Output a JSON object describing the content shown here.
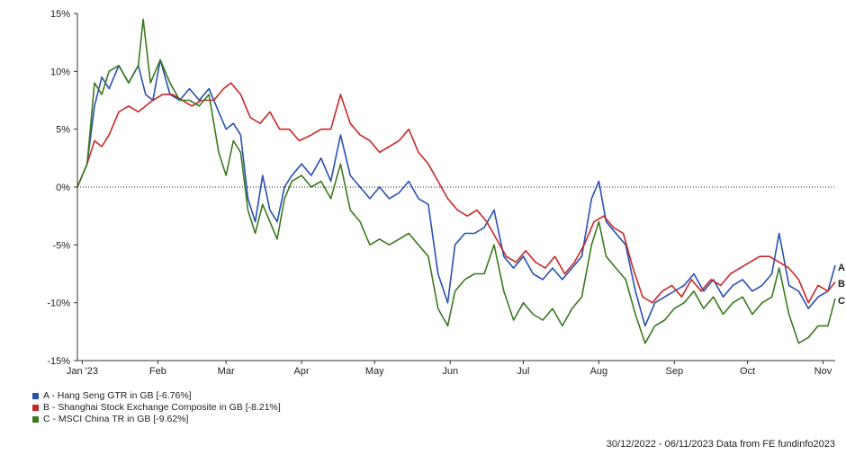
{
  "chart_data": {
    "type": "line",
    "title": "",
    "xlabel": "",
    "ylabel": "",
    "ylim": [
      -15,
      15
    ],
    "y_ticks": [
      15,
      10,
      5,
      0,
      -5,
      -10,
      -15
    ],
    "y_tick_labels": [
      "15%",
      "10%",
      "5%",
      "0%",
      "-5%",
      "-10%",
      "-15%"
    ],
    "x_range": [
      "2022-12-30",
      "2023-11-06"
    ],
    "x_ticks": [
      {
        "date": "2023-01-01",
        "label": "Jan '23"
      },
      {
        "date": "2023-02-01",
        "label": "Feb"
      },
      {
        "date": "2023-03-01",
        "label": "Mar"
      },
      {
        "date": "2023-04-01",
        "label": "Apr"
      },
      {
        "date": "2023-05-01",
        "label": "May"
      },
      {
        "date": "2023-06-01",
        "label": "Jun"
      },
      {
        "date": "2023-07-01",
        "label": "Jul"
      },
      {
        "date": "2023-08-01",
        "label": "Aug"
      },
      {
        "date": "2023-09-01",
        "label": "Sep"
      },
      {
        "date": "2023-10-01",
        "label": "Oct"
      },
      {
        "date": "2023-11-01",
        "label": "Nov"
      }
    ],
    "zero_line": "dotted",
    "series": [
      {
        "name": "A - Hang Seng GTR in GB [-6.76%]",
        "end_label": "A",
        "color": "#2850b4",
        "points": [
          [
            "2022-12-30",
            0
          ],
          [
            "2023-01-03",
            2
          ],
          [
            "2023-01-06",
            7
          ],
          [
            "2023-01-09",
            9.5
          ],
          [
            "2023-01-12",
            8.5
          ],
          [
            "2023-01-16",
            10.5
          ],
          [
            "2023-01-20",
            9
          ],
          [
            "2023-01-24",
            10.5
          ],
          [
            "2023-01-27",
            8
          ],
          [
            "2023-01-30",
            7.5
          ],
          [
            "2023-02-02",
            11
          ],
          [
            "2023-02-06",
            8
          ],
          [
            "2023-02-10",
            7.5
          ],
          [
            "2023-02-14",
            8.5
          ],
          [
            "2023-02-18",
            7.5
          ],
          [
            "2023-02-22",
            8.5
          ],
          [
            "2023-02-26",
            6.5
          ],
          [
            "2023-03-01",
            5
          ],
          [
            "2023-03-04",
            5.5
          ],
          [
            "2023-03-07",
            4.5
          ],
          [
            "2023-03-10",
            -1
          ],
          [
            "2023-03-13",
            -3
          ],
          [
            "2023-03-16",
            1
          ],
          [
            "2023-03-19",
            -2
          ],
          [
            "2023-03-22",
            -3
          ],
          [
            "2023-03-25",
            0
          ],
          [
            "2023-03-28",
            1
          ],
          [
            "2023-04-01",
            2
          ],
          [
            "2023-04-05",
            1
          ],
          [
            "2023-04-09",
            2.5
          ],
          [
            "2023-04-13",
            0.5
          ],
          [
            "2023-04-17",
            4.5
          ],
          [
            "2023-04-21",
            1
          ],
          [
            "2023-04-25",
            0
          ],
          [
            "2023-04-29",
            -1
          ],
          [
            "2023-05-03",
            0
          ],
          [
            "2023-05-07",
            -1
          ],
          [
            "2023-05-11",
            -0.5
          ],
          [
            "2023-05-15",
            0.5
          ],
          [
            "2023-05-19",
            -1
          ],
          [
            "2023-05-23",
            -1.5
          ],
          [
            "2023-05-27",
            -7.5
          ],
          [
            "2023-05-31",
            -10
          ],
          [
            "2023-06-03",
            -5
          ],
          [
            "2023-06-07",
            -4
          ],
          [
            "2023-06-11",
            -4
          ],
          [
            "2023-06-15",
            -3.5
          ],
          [
            "2023-06-19",
            -2
          ],
          [
            "2023-06-23",
            -6
          ],
          [
            "2023-06-27",
            -7
          ],
          [
            "2023-07-01",
            -6
          ],
          [
            "2023-07-05",
            -7.5
          ],
          [
            "2023-07-09",
            -8
          ],
          [
            "2023-07-13",
            -7
          ],
          [
            "2023-07-17",
            -8
          ],
          [
            "2023-07-21",
            -7
          ],
          [
            "2023-07-25",
            -6
          ],
          [
            "2023-07-29",
            -1
          ],
          [
            "2023-08-01",
            0.5
          ],
          [
            "2023-08-04",
            -3
          ],
          [
            "2023-08-08",
            -4
          ],
          [
            "2023-08-12",
            -5
          ],
          [
            "2023-08-16",
            -9
          ],
          [
            "2023-08-20",
            -12
          ],
          [
            "2023-08-24",
            -10
          ],
          [
            "2023-08-28",
            -9.5
          ],
          [
            "2023-09-01",
            -9
          ],
          [
            "2023-09-05",
            -8.5
          ],
          [
            "2023-09-09",
            -7.5
          ],
          [
            "2023-09-13",
            -9
          ],
          [
            "2023-09-17",
            -8
          ],
          [
            "2023-09-21",
            -9.5
          ],
          [
            "2023-09-25",
            -8.5
          ],
          [
            "2023-09-29",
            -8
          ],
          [
            "2023-10-03",
            -9
          ],
          [
            "2023-10-07",
            -8.5
          ],
          [
            "2023-10-11",
            -7.5
          ],
          [
            "2023-10-14",
            -4
          ],
          [
            "2023-10-18",
            -8.5
          ],
          [
            "2023-10-22",
            -9
          ],
          [
            "2023-10-26",
            -10.5
          ],
          [
            "2023-10-30",
            -9.5
          ],
          [
            "2023-11-03",
            -9
          ],
          [
            "2023-11-06",
            -6.76
          ]
        ]
      },
      {
        "name": "B - Shanghai Stock Exchange Composite in GB [-8.21%]",
        "end_label": "B",
        "color": "#c82828",
        "points": [
          [
            "2022-12-30",
            0
          ],
          [
            "2023-01-03",
            2
          ],
          [
            "2023-01-06",
            4
          ],
          [
            "2023-01-09",
            3.5
          ],
          [
            "2023-01-12",
            4.5
          ],
          [
            "2023-01-16",
            6.5
          ],
          [
            "2023-01-20",
            7
          ],
          [
            "2023-01-24",
            6.5
          ],
          [
            "2023-01-27",
            7
          ],
          [
            "2023-01-30",
            7.5
          ],
          [
            "2023-02-03",
            8
          ],
          [
            "2023-02-07",
            8
          ],
          [
            "2023-02-11",
            7.5
          ],
          [
            "2023-02-15",
            7
          ],
          [
            "2023-02-19",
            7.5
          ],
          [
            "2023-02-24",
            7.5
          ],
          [
            "2023-02-28",
            8.5
          ],
          [
            "2023-03-03",
            9
          ],
          [
            "2023-03-07",
            8
          ],
          [
            "2023-03-11",
            6
          ],
          [
            "2023-03-15",
            5.5
          ],
          [
            "2023-03-19",
            6.5
          ],
          [
            "2023-03-23",
            5
          ],
          [
            "2023-03-27",
            5
          ],
          [
            "2023-03-31",
            4
          ],
          [
            "2023-04-05",
            4.5
          ],
          [
            "2023-04-09",
            5
          ],
          [
            "2023-04-13",
            5
          ],
          [
            "2023-04-17",
            8
          ],
          [
            "2023-04-21",
            5.5
          ],
          [
            "2023-04-25",
            4.5
          ],
          [
            "2023-04-29",
            4
          ],
          [
            "2023-05-03",
            3
          ],
          [
            "2023-05-07",
            3.5
          ],
          [
            "2023-05-11",
            4
          ],
          [
            "2023-05-15",
            5
          ],
          [
            "2023-05-19",
            3
          ],
          [
            "2023-05-23",
            2
          ],
          [
            "2023-05-27",
            0.5
          ],
          [
            "2023-05-31",
            -1
          ],
          [
            "2023-06-04",
            -2
          ],
          [
            "2023-06-08",
            -2.5
          ],
          [
            "2023-06-12",
            -2
          ],
          [
            "2023-06-16",
            -3
          ],
          [
            "2023-06-20",
            -4.5
          ],
          [
            "2023-06-24",
            -6
          ],
          [
            "2023-06-28",
            -6.5
          ],
          [
            "2023-07-02",
            -5.5
          ],
          [
            "2023-07-06",
            -6.5
          ],
          [
            "2023-07-10",
            -7
          ],
          [
            "2023-07-14",
            -6
          ],
          [
            "2023-07-18",
            -7.5
          ],
          [
            "2023-07-22",
            -6.5
          ],
          [
            "2023-07-26",
            -5
          ],
          [
            "2023-07-30",
            -3
          ],
          [
            "2023-08-03",
            -2.5
          ],
          [
            "2023-08-07",
            -3.5
          ],
          [
            "2023-08-11",
            -4
          ],
          [
            "2023-08-15",
            -7
          ],
          [
            "2023-08-19",
            -9.5
          ],
          [
            "2023-08-23",
            -10
          ],
          [
            "2023-08-27",
            -9
          ],
          [
            "2023-08-31",
            -8.5
          ],
          [
            "2023-09-04",
            -9.5
          ],
          [
            "2023-09-08",
            -8
          ],
          [
            "2023-09-12",
            -9
          ],
          [
            "2023-09-16",
            -8
          ],
          [
            "2023-09-20",
            -8.5
          ],
          [
            "2023-09-24",
            -7.5
          ],
          [
            "2023-09-28",
            -7
          ],
          [
            "2023-10-02",
            -6.5
          ],
          [
            "2023-10-06",
            -6
          ],
          [
            "2023-10-10",
            -6
          ],
          [
            "2023-10-14",
            -6.5
          ],
          [
            "2023-10-18",
            -7
          ],
          [
            "2023-10-22",
            -8
          ],
          [
            "2023-10-26",
            -10
          ],
          [
            "2023-10-30",
            -8.5
          ],
          [
            "2023-11-03",
            -9
          ],
          [
            "2023-11-06",
            -8.21
          ]
        ]
      },
      {
        "name": "C - MSCI China TR in GB [-9.62%]",
        "end_label": "C",
        "color": "#3a7a1e",
        "points": [
          [
            "2022-12-30",
            0
          ],
          [
            "2023-01-03",
            2
          ],
          [
            "2023-01-06",
            9
          ],
          [
            "2023-01-09",
            8
          ],
          [
            "2023-01-12",
            10
          ],
          [
            "2023-01-16",
            10.5
          ],
          [
            "2023-01-20",
            9
          ],
          [
            "2023-01-24",
            10.5
          ],
          [
            "2023-01-26",
            14.5
          ],
          [
            "2023-01-29",
            9
          ],
          [
            "2023-02-02",
            11
          ],
          [
            "2023-02-06",
            9
          ],
          [
            "2023-02-10",
            7.5
          ],
          [
            "2023-02-14",
            7.5
          ],
          [
            "2023-02-18",
            7
          ],
          [
            "2023-02-22",
            8
          ],
          [
            "2023-02-26",
            3
          ],
          [
            "2023-03-01",
            1
          ],
          [
            "2023-03-04",
            4
          ],
          [
            "2023-03-07",
            3
          ],
          [
            "2023-03-10",
            -2
          ],
          [
            "2023-03-13",
            -4
          ],
          [
            "2023-03-16",
            -1.5
          ],
          [
            "2023-03-19",
            -3
          ],
          [
            "2023-03-22",
            -4.5
          ],
          [
            "2023-03-25",
            -1
          ],
          [
            "2023-03-28",
            0.5
          ],
          [
            "2023-04-01",
            1
          ],
          [
            "2023-04-05",
            0
          ],
          [
            "2023-04-09",
            0.5
          ],
          [
            "2023-04-13",
            -1
          ],
          [
            "2023-04-17",
            2
          ],
          [
            "2023-04-21",
            -2
          ],
          [
            "2023-04-25",
            -3
          ],
          [
            "2023-04-29",
            -5
          ],
          [
            "2023-05-03",
            -4.5
          ],
          [
            "2023-05-07",
            -5
          ],
          [
            "2023-05-11",
            -4.5
          ],
          [
            "2023-05-15",
            -4
          ],
          [
            "2023-05-19",
            -5
          ],
          [
            "2023-05-23",
            -6
          ],
          [
            "2023-05-27",
            -10.5
          ],
          [
            "2023-05-31",
            -12
          ],
          [
            "2023-06-03",
            -9
          ],
          [
            "2023-06-07",
            -8
          ],
          [
            "2023-06-11",
            -7.5
          ],
          [
            "2023-06-15",
            -7.5
          ],
          [
            "2023-06-19",
            -5
          ],
          [
            "2023-06-23",
            -9
          ],
          [
            "2023-06-27",
            -11.5
          ],
          [
            "2023-07-01",
            -10
          ],
          [
            "2023-07-05",
            -11
          ],
          [
            "2023-07-09",
            -11.5
          ],
          [
            "2023-07-13",
            -10.5
          ],
          [
            "2023-07-17",
            -12
          ],
          [
            "2023-07-21",
            -10.5
          ],
          [
            "2023-07-25",
            -9.5
          ],
          [
            "2023-07-29",
            -5
          ],
          [
            "2023-08-01",
            -3
          ],
          [
            "2023-08-04",
            -6
          ],
          [
            "2023-08-08",
            -7
          ],
          [
            "2023-08-12",
            -8
          ],
          [
            "2023-08-16",
            -11
          ],
          [
            "2023-08-20",
            -13.5
          ],
          [
            "2023-08-24",
            -12
          ],
          [
            "2023-08-28",
            -11.5
          ],
          [
            "2023-09-01",
            -10.5
          ],
          [
            "2023-09-05",
            -10
          ],
          [
            "2023-09-09",
            -9
          ],
          [
            "2023-09-13",
            -10.5
          ],
          [
            "2023-09-17",
            -9.5
          ],
          [
            "2023-09-21",
            -11
          ],
          [
            "2023-09-25",
            -10
          ],
          [
            "2023-09-29",
            -9.5
          ],
          [
            "2023-10-03",
            -11
          ],
          [
            "2023-10-07",
            -10
          ],
          [
            "2023-10-11",
            -9.5
          ],
          [
            "2023-10-14",
            -7
          ],
          [
            "2023-10-18",
            -11
          ],
          [
            "2023-10-22",
            -13.5
          ],
          [
            "2023-10-26",
            -13
          ],
          [
            "2023-10-30",
            -12
          ],
          [
            "2023-11-03",
            -12
          ],
          [
            "2023-11-06",
            -9.62
          ]
        ]
      }
    ]
  },
  "legend": {
    "items": [
      {
        "label": "A - Hang Seng GTR in GB [-6.76%]",
        "color": "#2850b4"
      },
      {
        "label": "B - Shanghai Stock Exchange Composite in GB [-8.21%]",
        "color": "#c82828"
      },
      {
        "label": "C - MSCI China TR in GB [-9.62%]",
        "color": "#3a7a1e"
      }
    ]
  },
  "footer": {
    "source": "30/12/2022 - 06/11/2023 Data from FE fundinfo2023"
  }
}
